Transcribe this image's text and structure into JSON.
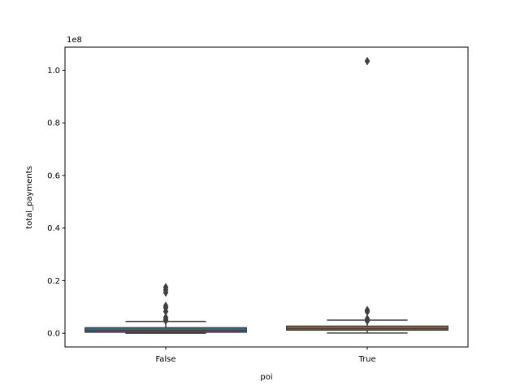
{
  "chart_data": {
    "type": "box",
    "xlabel": "poi",
    "ylabel": "total_payments",
    "y_offset_label": "1e8",
    "y_scale": 100000000,
    "ylim": [
      -0.052,
      1.088
    ],
    "yticks": [
      0.0,
      0.2,
      0.4,
      0.6,
      0.8,
      1.0
    ],
    "ytick_labels": [
      "0.0",
      "0.2",
      "0.4",
      "0.6",
      "0.8",
      "1.0"
    ],
    "categories": [
      "False",
      "True"
    ],
    "boxes": [
      {
        "category": "False",
        "color": "#3a6c90",
        "whisker_low": 0.0,
        "q1": 0.004,
        "median": 0.011,
        "q3": 0.021,
        "whisker_high": 0.045,
        "outliers": [
          0.175,
          0.165,
          0.155,
          0.104,
          0.097,
          0.083,
          0.06,
          0.052,
          0.048
        ]
      },
      {
        "category": "True",
        "color": "#b36a2e",
        "whisker_low": 0.001,
        "q1": 0.012,
        "median": 0.018,
        "q3": 0.027,
        "whisker_high": 0.05,
        "outliers": [
          1.035,
          0.088,
          0.082,
          0.055,
          0.047
        ]
      }
    ],
    "grid": false,
    "legend": "none"
  }
}
